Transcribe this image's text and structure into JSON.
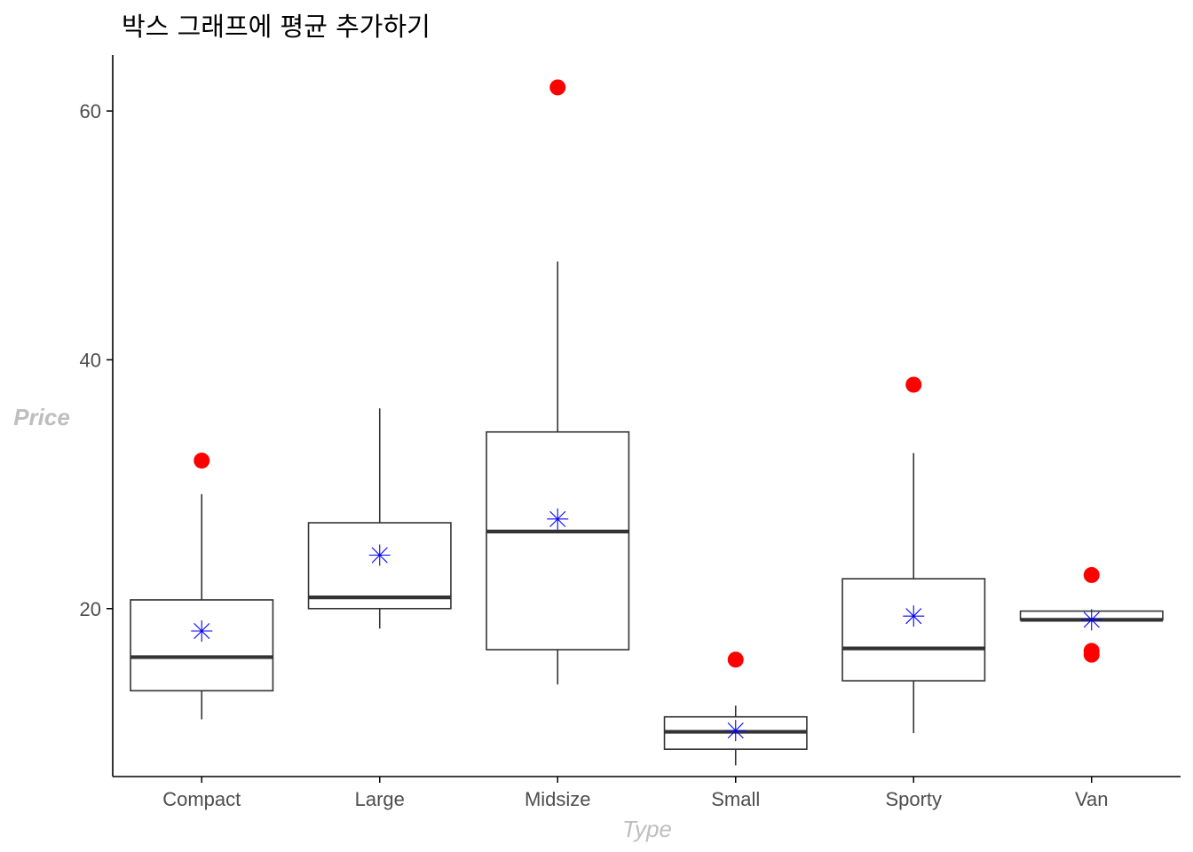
{
  "chart_data": {
    "type": "box",
    "title": "박스 그래프에 평균 추가하기",
    "xlabel": "Type",
    "ylabel": "Price",
    "ylim": [
      6.5,
      64.5
    ],
    "yticks": [
      20,
      40,
      60
    ],
    "grid": false,
    "categories": [
      "Compact",
      "Large",
      "Midsize",
      "Small",
      "Sporty",
      "Van"
    ],
    "boxes": [
      {
        "category": "Compact",
        "whisker_low": 11.1,
        "q1": 13.4,
        "median": 16.1,
        "q3": 20.7,
        "whisker_high": 29.2,
        "mean": 18.2,
        "outliers": [
          31.9
        ]
      },
      {
        "category": "Large",
        "whisker_low": 18.4,
        "q1": 20.0,
        "median": 20.9,
        "q3": 26.9,
        "whisker_high": 36.1,
        "mean": 24.3,
        "outliers": []
      },
      {
        "category": "Midsize",
        "whisker_low": 13.9,
        "q1": 16.7,
        "median": 26.2,
        "q3": 34.2,
        "whisker_high": 47.9,
        "mean": 27.2,
        "outliers": [
          61.9
        ]
      },
      {
        "category": "Small",
        "whisker_low": 7.4,
        "q1": 8.7,
        "median": 10.1,
        "q3": 11.3,
        "whisker_high": 12.2,
        "mean": 10.2,
        "outliers": [
          15.9
        ]
      },
      {
        "category": "Sporty",
        "whisker_low": 10.0,
        "q1": 14.2,
        "median": 16.8,
        "q3": 22.4,
        "whisker_high": 32.5,
        "mean": 19.4,
        "outliers": [
          38.0
        ]
      },
      {
        "category": "Van",
        "whisker_low": 19.0,
        "q1": 19.1,
        "median": 19.1,
        "q3": 19.8,
        "whisker_high": 19.8,
        "mean": 19.1,
        "outliers": [
          22.7,
          16.6,
          16.3
        ]
      }
    ],
    "colors": {
      "box_stroke": "#333333",
      "outlier": "#ff0000",
      "mean_marker": "#0000ff",
      "axis_line": "#000000",
      "axis_title": "#bebebe",
      "tick_label": "#4d4d4d"
    }
  }
}
